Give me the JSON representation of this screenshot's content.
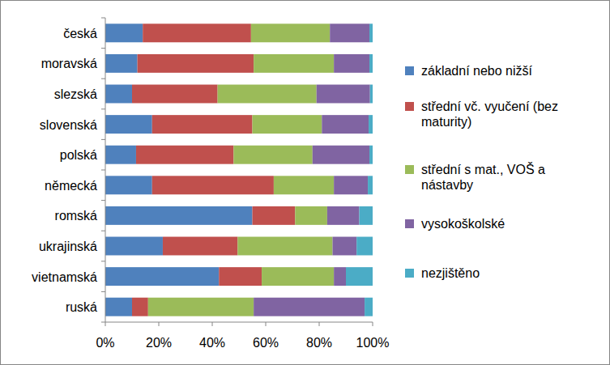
{
  "chart_data": {
    "type": "bar",
    "orientation": "horizontal",
    "stacked": true,
    "legend": "right",
    "grid": false,
    "categories": [
      "česká",
      "moravská",
      "slezská",
      "slovenská",
      "polská",
      "německá",
      "romská",
      "ukrajinská",
      "vietnamská",
      "ruská"
    ],
    "series": [
      {
        "name": "základní nebo nižší",
        "color": "#4f81bd",
        "values": [
          14,
          12,
          10,
          17.5,
          11.5,
          17.5,
          55,
          21.5,
          42.5,
          10
        ]
      },
      {
        "name": "střední vč. vyučení (bez maturity)",
        "color": "#c0504d",
        "values": [
          40.5,
          43.5,
          32,
          37.5,
          36.5,
          45.5,
          16,
          28,
          16,
          6
        ]
      },
      {
        "name": "střední s mat., VOŠ a nástavby",
        "color": "#9bbb59",
        "values": [
          29.5,
          30,
          37,
          26,
          29.5,
          22.5,
          12,
          35.5,
          27,
          39.5
        ]
      },
      {
        "name": "vysokoškolské",
        "color": "#8064a2",
        "values": [
          14.8,
          13.3,
          20,
          17.5,
          21.3,
          12.7,
          12,
          9,
          4.5,
          41.5
        ]
      },
      {
        "name": "nezjištěno",
        "color": "#4bacc6",
        "values": [
          1.2,
          1.2,
          1,
          1.5,
          1.2,
          1.8,
          5,
          6,
          10,
          3
        ]
      }
    ],
    "xlim": [
      0,
      100
    ],
    "xticks": [
      {
        "value": 0,
        "label": "0%"
      },
      {
        "value": 20,
        "label": "20%"
      },
      {
        "value": 40,
        "label": "40%"
      },
      {
        "value": 60,
        "label": "60%"
      },
      {
        "value": 80,
        "label": "80%"
      },
      {
        "value": 100,
        "label": "100%"
      }
    ]
  }
}
